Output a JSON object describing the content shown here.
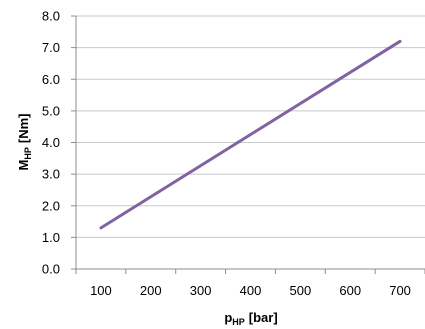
{
  "chart_data": {
    "type": "line",
    "x_title": {
      "main": "p",
      "sub": "HP",
      "unit": "[bar]"
    },
    "y_title": {
      "main": "M",
      "sub": "HP",
      "unit": "[Nm]"
    },
    "x_ticks": [
      "100",
      "200",
      "300",
      "400",
      "500",
      "600",
      "700"
    ],
    "y_ticks": [
      "0.0",
      "1.0",
      "2.0",
      "3.0",
      "4.0",
      "5.0",
      "6.0",
      "7.0",
      "8.0"
    ],
    "xlim": [
      50,
      750
    ],
    "ylim": [
      0,
      8
    ],
    "grid": "horizontal",
    "legend": "none",
    "series": [
      {
        "color": "#8064a2",
        "x": [
          100,
          700
        ],
        "y": [
          1.3,
          7.2
        ]
      }
    ]
  }
}
